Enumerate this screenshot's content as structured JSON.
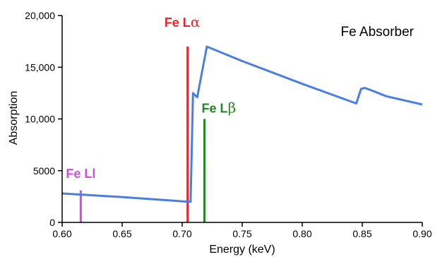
{
  "chart_data": {
    "type": "line",
    "title": "Fe Absorber",
    "xlabel": "Energy (keV)",
    "ylabel": "Absorption",
    "xlim": [
      0.6,
      0.9
    ],
    "ylim": [
      0,
      20000
    ],
    "x_ticks": [
      0.6,
      0.65,
      0.7,
      0.75,
      0.8,
      0.85,
      0.9
    ],
    "x_tick_labels": [
      "0.60",
      "0.65",
      "0.70",
      "0.75",
      "0.80",
      "0.85",
      "0.90"
    ],
    "y_ticks": [
      0,
      5000,
      10000,
      15000,
      20000
    ],
    "y_tick_labels": [
      "0",
      "5000",
      "10,000",
      "15,000",
      "20,000"
    ],
    "grid": false,
    "series": [
      {
        "color": "#4a7fe0",
        "points": [
          [
            0.6,
            2800
          ],
          [
            0.65,
            2450
          ],
          [
            0.705,
            2000
          ],
          [
            0.707,
            2000
          ],
          [
            0.709,
            12500
          ],
          [
            0.7125,
            12100
          ],
          [
            0.7205,
            17000
          ],
          [
            0.75,
            15600
          ],
          [
            0.8,
            13400
          ],
          [
            0.845,
            11500
          ],
          [
            0.849,
            12900
          ],
          [
            0.852,
            13000
          ],
          [
            0.857,
            12800
          ],
          [
            0.87,
            12200
          ],
          [
            0.9,
            11400
          ]
        ]
      }
    ],
    "annotations": [
      {
        "label_prefix": "Fe L",
        "label_symbol": "α",
        "color": "#e8262b",
        "x": 0.7045,
        "height": 17000,
        "label_x": 0.7,
        "label_y": 18900
      },
      {
        "label_prefix": "Fe L",
        "label_symbol": "β",
        "color": "#1f8a1f",
        "x": 0.7185,
        "height": 10000,
        "label_x": 0.7305,
        "label_y": 10600
      },
      {
        "label_prefix": "Fe Ll",
        "label_symbol": "",
        "color": "#d44ae6",
        "x": 0.6155,
        "height": 3100,
        "label_x": 0.6155,
        "label_y": 4300
      }
    ]
  }
}
